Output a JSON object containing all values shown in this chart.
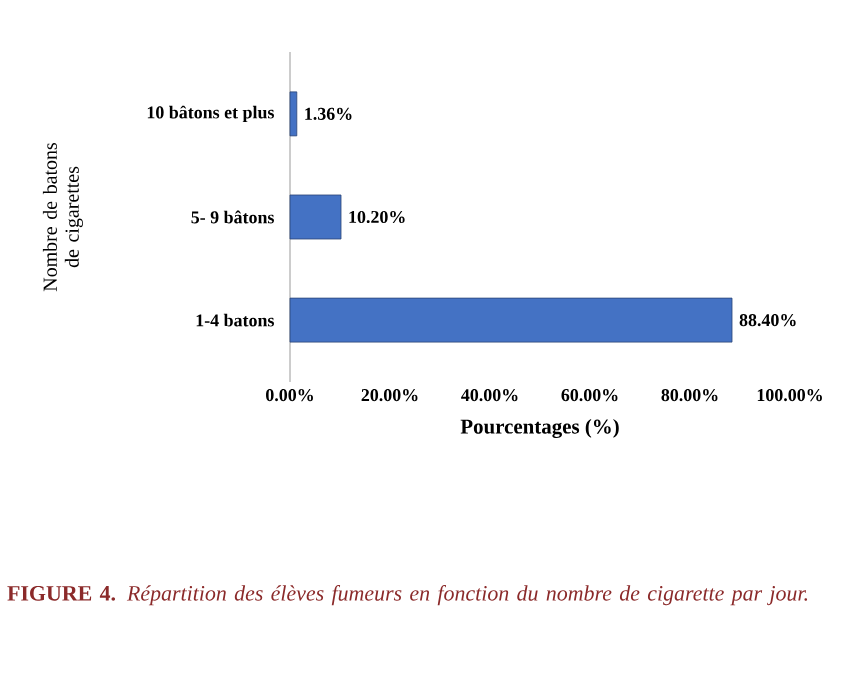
{
  "chart_data": {
    "type": "bar",
    "orientation": "horizontal",
    "categories": [
      "10 bâtons et plus",
      "5- 9 bâtons",
      "1-4 batons"
    ],
    "values": [
      1.36,
      10.2,
      88.4
    ],
    "color": "#4472c4",
    "value_labels": [
      "1.36%",
      "10.20%",
      "88.40%"
    ],
    "xlim": [
      0,
      100
    ],
    "xticks": [
      {
        "value": 0,
        "label": "0.00%"
      },
      {
        "value": 20,
        "label": "20.00%"
      },
      {
        "value": 40,
        "label": "40.00%"
      },
      {
        "value": 60,
        "label": "60.00%"
      },
      {
        "value": 80,
        "label": "80.00%"
      },
      {
        "value": 100,
        "label": "100.00%"
      }
    ],
    "xlabel": "Pourcentages (%)",
    "ylabel": "Nombre de batons de cigarettes",
    "annotations": [
      "**FIGURE 4.** *Répartition des élèves fumeurs en fonction du nombre de cigarette par jour.*"
    ],
    "grid": false
  }
}
